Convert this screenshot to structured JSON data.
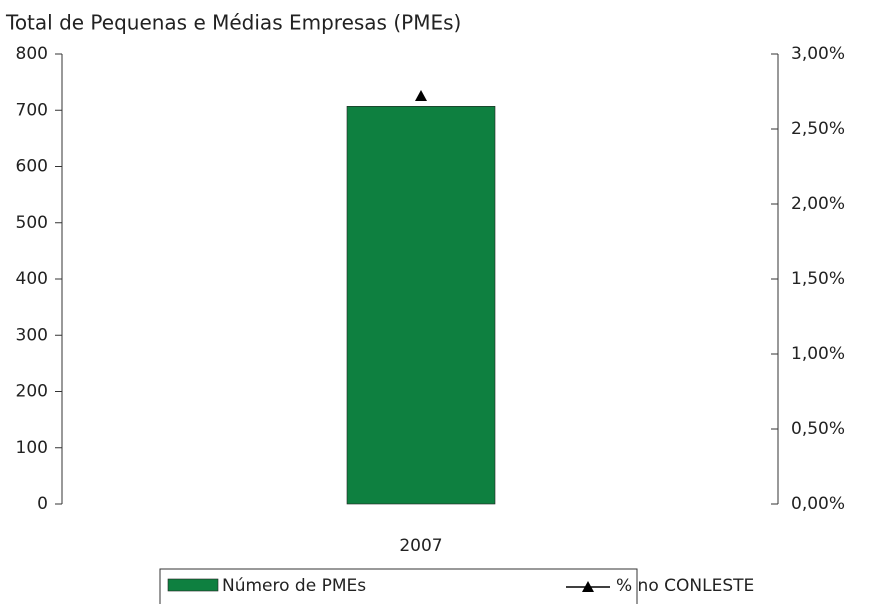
{
  "chart_data": {
    "type": "bar",
    "title": "Total de Pequenas e Médias Empresas (PMEs)",
    "categories": [
      "2007"
    ],
    "series": [
      {
        "name": "Número de PMEs",
        "type": "bar",
        "color": "#0e8040",
        "values": [
          707
        ]
      },
      {
        "name": "% no CONLESTE",
        "type": "line",
        "axis": "y2",
        "color": "#000000",
        "values": [
          2.72
        ]
      }
    ],
    "ylim": [
      0,
      800
    ],
    "yticks": [
      0,
      100,
      200,
      300,
      400,
      500,
      600,
      700,
      800
    ],
    "y2lim": [
      0,
      3
    ],
    "y2ticks": [
      {
        "value": 0,
        "label": "0,00%"
      },
      {
        "value": 0.5,
        "label": "0,50%"
      },
      {
        "value": 1,
        "label": "1,00%"
      },
      {
        "value": 1.5,
        "label": "1,50%"
      },
      {
        "value": 2,
        "label": "2,00%"
      },
      {
        "value": 2.5,
        "label": "2,50%"
      },
      {
        "value": 3,
        "label": "3,00%"
      }
    ],
    "legend": "bottom"
  }
}
